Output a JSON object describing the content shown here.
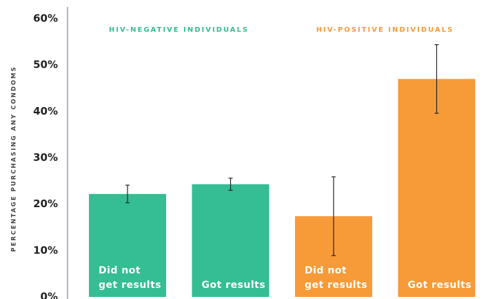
{
  "chart_data": {
    "type": "bar",
    "ylabel": "PERCENTAGE PURCHASING ANY CONDOMS",
    "ylim": [
      0,
      60
    ],
    "yticks": [
      {
        "value": 0,
        "label": "0%"
      },
      {
        "value": 10,
        "label": "10%"
      },
      {
        "value": 20,
        "label": "20%"
      },
      {
        "value": 30,
        "label": "30%"
      },
      {
        "value": 40,
        "label": "40%"
      },
      {
        "value": 50,
        "label": "50%"
      },
      {
        "value": 60,
        "label": "60%"
      }
    ],
    "groups": [
      {
        "label": "HIV-NEGATIVE INDIVIDUALS",
        "color": "#35bd93",
        "categories": [
          "Did not\nget results",
          "Got results"
        ],
        "values": [
          22.2,
          24.3
        ],
        "errors": [
          1.9,
          1.3
        ]
      },
      {
        "label": "HIV-POSITIVE INDIVIDUALS",
        "color": "#f79a38",
        "categories": [
          "Did not\nget results",
          "Got results"
        ],
        "values": [
          17.4,
          47.0
        ],
        "errors": [
          8.5,
          7.4
        ]
      }
    ]
  }
}
